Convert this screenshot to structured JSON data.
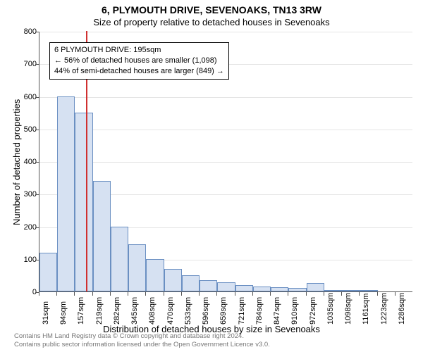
{
  "title_line1": "6, PLYMOUTH DRIVE, SEVENOAKS, TN13 3RW",
  "title_line2": "Size of property relative to detached houses in Sevenoaks",
  "ylabel": "Number of detached properties",
  "xlabel": "Distribution of detached houses by size in Sevenoaks",
  "attribution_line1": "Contains HM Land Registry data © Crown copyright and database right 2024.",
  "attribution_line2": "Contains public sector information licensed under the Open Government Licence v3.0.",
  "chart": {
    "type": "histogram",
    "background_color": "#ffffff",
    "grid_color": "#e5e5e5",
    "axis_color": "#555555",
    "bar_fill": "#d6e1f2",
    "bar_stroke": "#6a8fc2",
    "refline_color": "#d03030",
    "ylim": [
      0,
      800
    ],
    "ytick_step": 100,
    "x_tick_labels": [
      "31sqm",
      "94sqm",
      "157sqm",
      "219sqm",
      "282sqm",
      "345sqm",
      "408sqm",
      "470sqm",
      "533sqm",
      "596sqm",
      "659sqm",
      "721sqm",
      "784sqm",
      "847sqm",
      "910sqm",
      "972sqm",
      "1035sqm",
      "1098sqm",
      "1161sqm",
      "1223sqm",
      "1286sqm"
    ],
    "bar_values": [
      120,
      600,
      550,
      340,
      200,
      145,
      100,
      70,
      50,
      35,
      28,
      20,
      15,
      12,
      10,
      25,
      3,
      2,
      2,
      0,
      0
    ],
    "reference_value": 195,
    "reference_bin_index": 2,
    "reference_fraction_in_bin": 0.6,
    "tick_fontsize": 11,
    "label_fontsize": 13,
    "title_fontsize": 14
  },
  "info_box": {
    "line1": "6 PLYMOUTH DRIVE: 195sqm",
    "line2": "← 56% of detached houses are smaller (1,098)",
    "line3": "44% of semi-detached houses are larger (849) →",
    "border_color": "#000000",
    "background_color": "#ffffff",
    "fontsize": 11
  }
}
